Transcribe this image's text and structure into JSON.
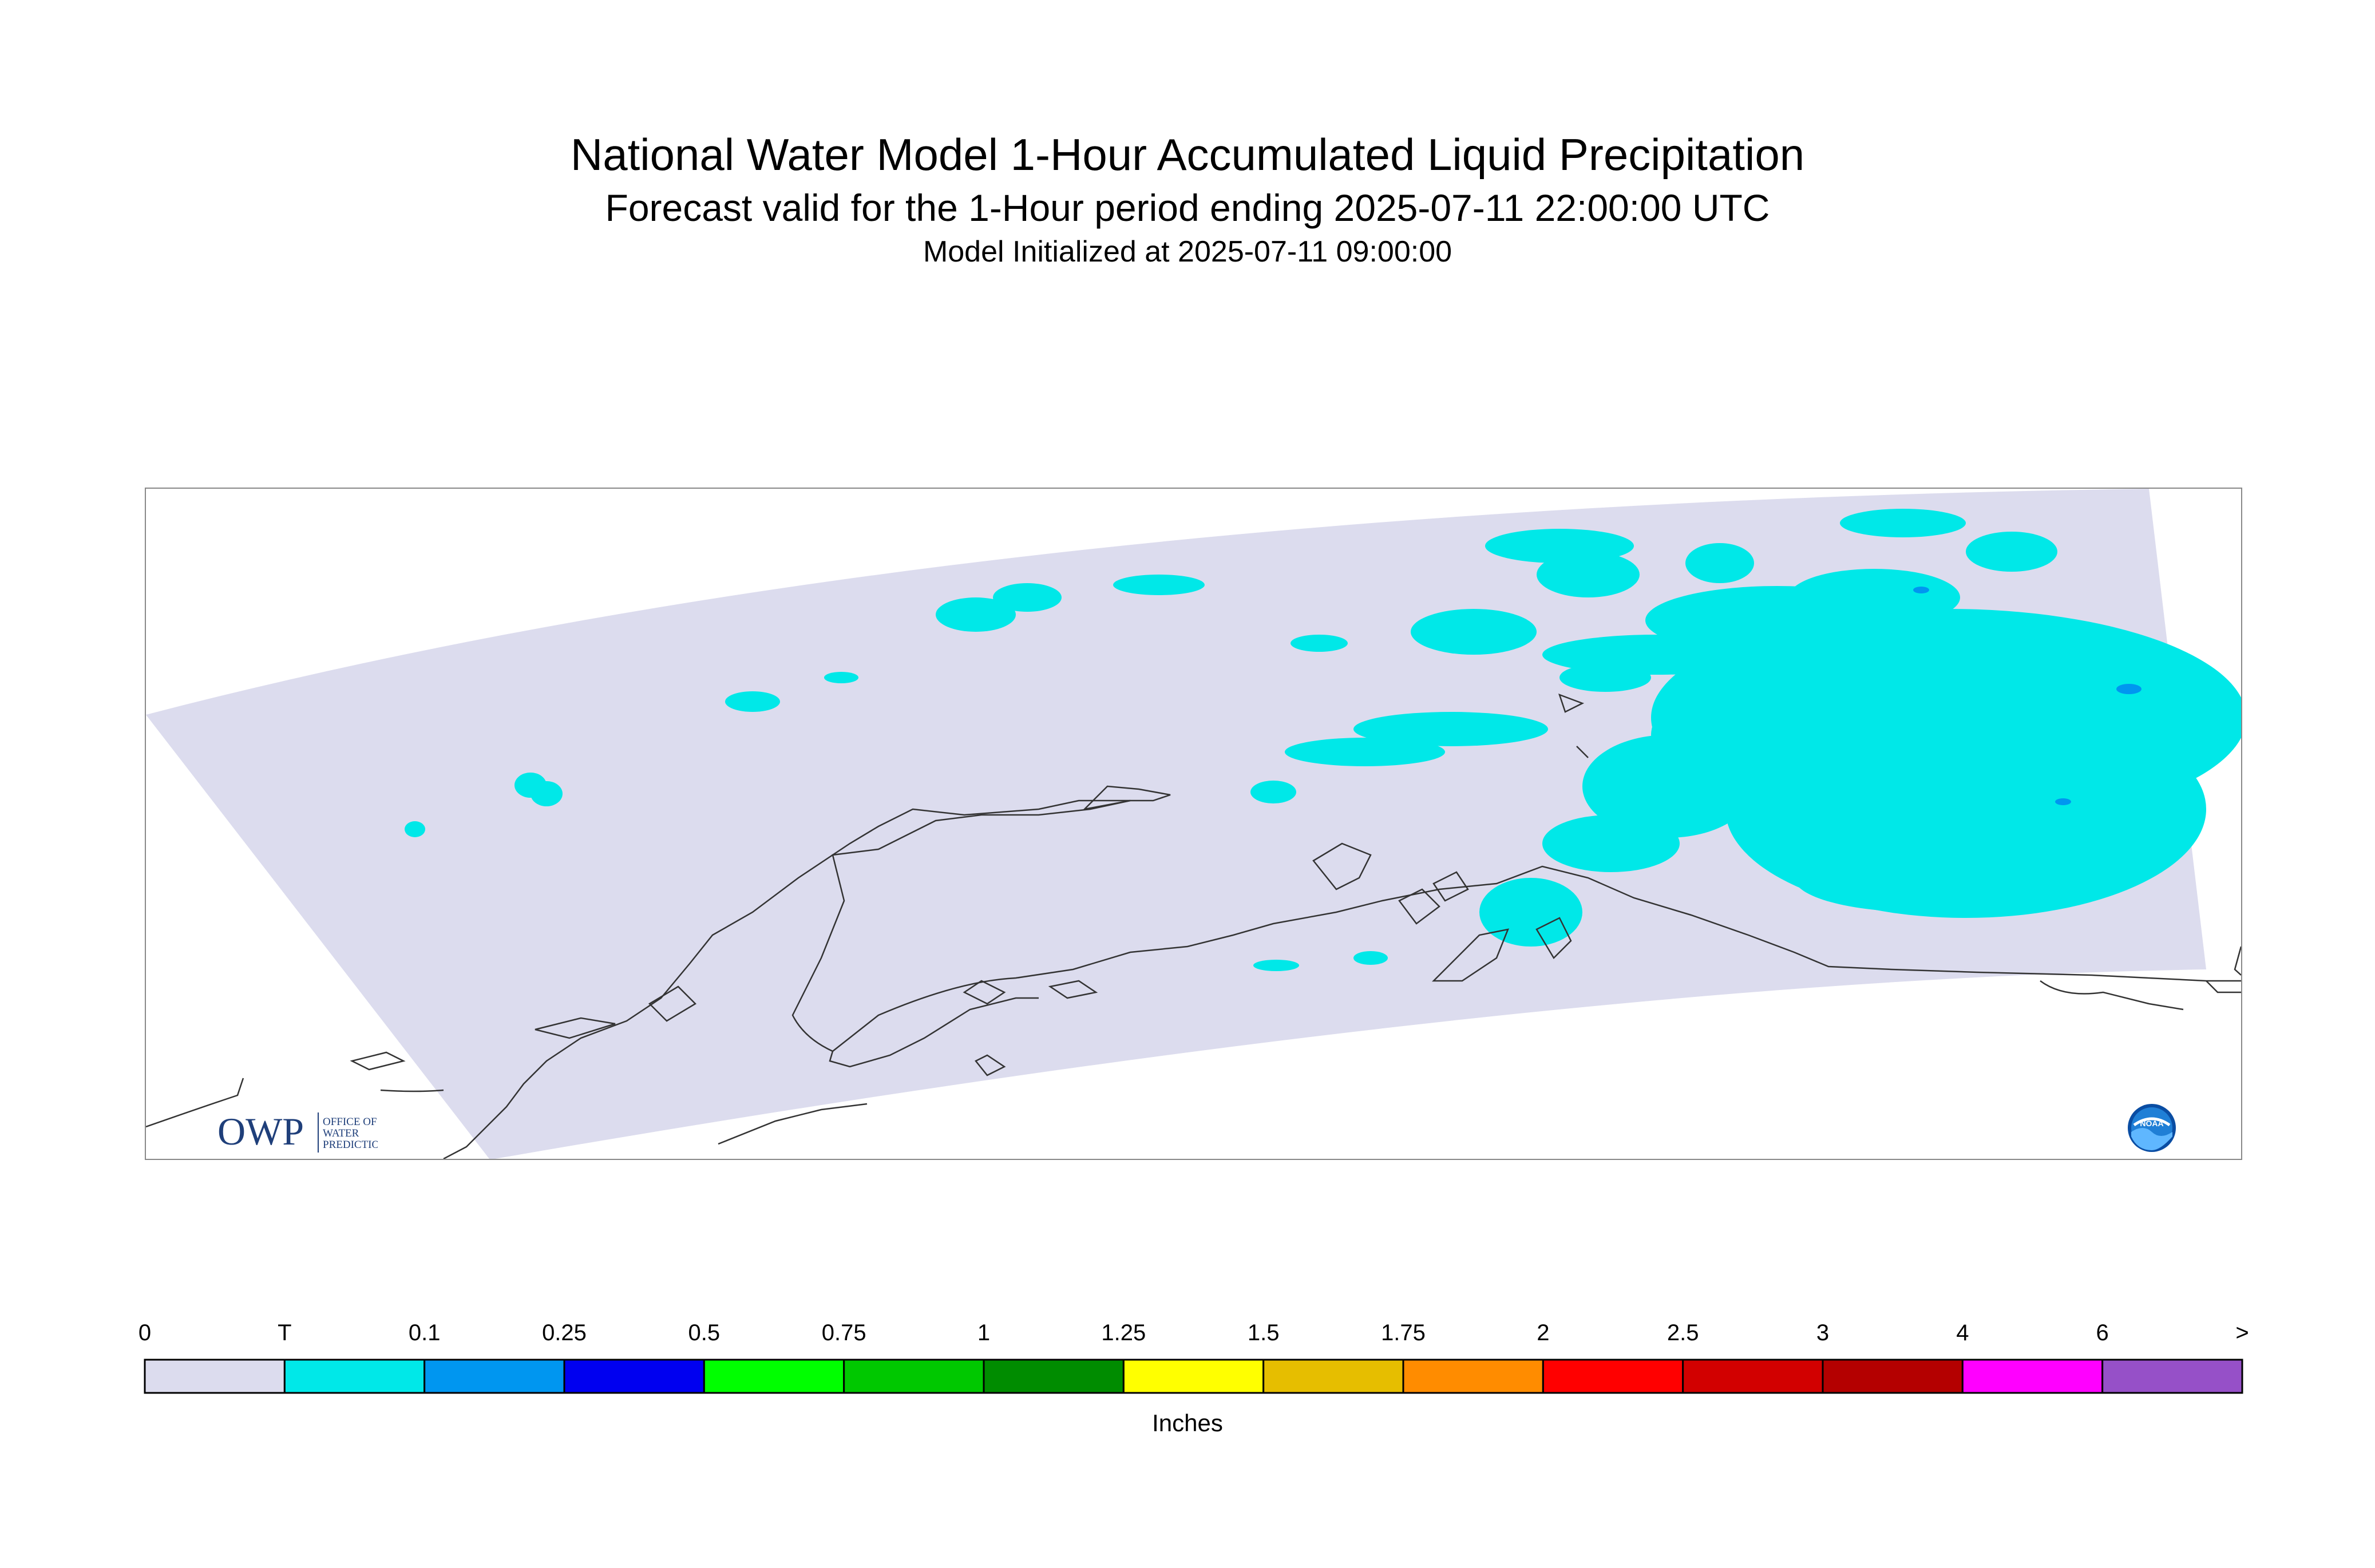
{
  "title": "National Water Model 1-Hour Accumulated Liquid Precipitation",
  "subtitle": "Forecast valid for the 1-Hour period ending 2025-07-11 22:00:00 UTC",
  "init_line": "Model Initialized at 2025-07-11 09:00:00",
  "logos": {
    "owp_main": "OWP",
    "owp_line1": "OFFICE OF",
    "owp_line2": "WATER",
    "owp_line3": "PREDICTION",
    "noaa": "NOAA"
  },
  "colors": {
    "domain_fill": "#dcdcee",
    "trace": "#00e8e8",
    "light_blue": "#0096f0",
    "coastline": "#333333"
  },
  "colorbar": {
    "units": "Inches",
    "tick_labels": [
      "0",
      "T",
      "0.1",
      "0.25",
      "0.5",
      "0.75",
      "1",
      "1.25",
      "1.5",
      "1.75",
      "2",
      "2.5",
      "3",
      "4",
      "6",
      ">"
    ],
    "colors": [
      "#dcdcee",
      "#00e8e8",
      "#0096f0",
      "#0000f0",
      "#00ff00",
      "#00c800",
      "#008c00",
      "#ffff00",
      "#e6be00",
      "#ff8c00",
      "#ff0000",
      "#d20000",
      "#b40000",
      "#ff00ff",
      "#9650c8"
    ]
  },
  "chart_data": {
    "type": "heatmap",
    "title": "National Water Model 1-Hour Accumulated Liquid Precipitation",
    "subtitle": "Forecast valid for the 1-Hour period ending 2025-07-11 22:00:00 UTC",
    "units": "Inches",
    "legend_placement": "bottom",
    "levels": [
      "0",
      "T",
      "0.1",
      "0.25",
      "0.5",
      "0.75",
      "1",
      "1.25",
      "1.5",
      "1.75",
      "2",
      "2.5",
      "3",
      "4",
      "6",
      ">"
    ],
    "visible_categories": [
      "0",
      "T",
      "0.1"
    ]
  }
}
